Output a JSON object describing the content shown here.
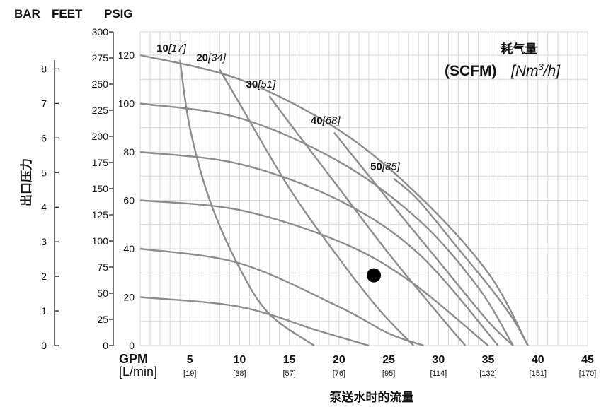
{
  "header": {
    "unit_bar": "BAR",
    "unit_feet": "FEET",
    "unit_psig": "PSIG"
  },
  "y_axis_title": "出口压力",
  "x_axis_unit_gpm": "GPM",
  "x_axis_unit_lmin": "[L/min]",
  "x_axis_title": "泵送水时的流量",
  "air_legend": {
    "title": "耗气量",
    "scfm": "(SCFM)",
    "nm3h": "[Nm3/h]"
  },
  "chart_data": {
    "type": "line",
    "xlabel": "泵送水时的流量",
    "ylabel": "出口压力",
    "x_ticks_gpm": [
      "5",
      "10",
      "15",
      "20",
      "25",
      "30",
      "35",
      "40",
      "45"
    ],
    "x_ticks_lmin": [
      "[19]",
      "[38]",
      "[57]",
      "[76]",
      "[95]",
      "[114]",
      "[132]",
      "[151]",
      "[170]"
    ],
    "y_ticks_psig": [
      "0",
      "20",
      "40",
      "60",
      "80",
      "100",
      "120"
    ],
    "y_ticks_feet": [
      "0",
      "25",
      "50",
      "75",
      "100",
      "125",
      "150",
      "175",
      "200",
      "225",
      "250",
      "275",
      "300"
    ],
    "y_ticks_bar": [
      "0",
      "1",
      "2",
      "3",
      "4",
      "5",
      "6",
      "7",
      "8"
    ],
    "xlim": [
      0,
      45
    ],
    "ylim_psig": [
      0,
      120
    ],
    "grid": true,
    "pressure_curves": [
      {
        "name": "120 psig",
        "x": [
          0,
          10,
          20,
          28,
          35,
          39
        ],
        "y": [
          120,
          110,
          89,
          62,
          30,
          0
        ]
      },
      {
        "name": "100 psig",
        "x": [
          0,
          10,
          20,
          28,
          34,
          37.5
        ],
        "y": [
          100,
          94,
          76,
          52,
          24,
          0
        ]
      },
      {
        "name": "80 psig",
        "x": [
          0,
          10,
          20,
          28,
          36
        ],
        "y": [
          80,
          75,
          60,
          38,
          0
        ]
      },
      {
        "name": "60 psig",
        "x": [
          0,
          10,
          20,
          27,
          35
        ],
        "y": [
          60,
          56,
          43,
          27,
          0
        ]
      },
      {
        "name": "40 psig",
        "x": [
          0,
          10,
          20,
          25,
          28.5
        ],
        "y": [
          40,
          34,
          16,
          5,
          0
        ]
      },
      {
        "name": "20 psig",
        "x": [
          0,
          10,
          18,
          23
        ],
        "y": [
          20,
          16,
          6,
          0
        ]
      }
    ],
    "air_curves": [
      {
        "name": "10",
        "label": "10",
        "label_metric": "[17]",
        "x": [
          4,
          5,
          7,
          10,
          13,
          17.5
        ],
        "y": [
          118,
          90,
          60,
          32,
          13,
          0
        ]
      },
      {
        "name": "20",
        "label": "20",
        "label_metric": "[34]",
        "x": [
          8,
          10,
          15,
          20,
          24,
          27.5
        ],
        "y": [
          114,
          100,
          65,
          36,
          15,
          0
        ]
      },
      {
        "name": "30",
        "label": "30",
        "label_metric": "[51]",
        "x": [
          13,
          15,
          20,
          25,
          30,
          32.7
        ],
        "y": [
          103,
          92,
          65,
          38,
          13,
          0
        ]
      },
      {
        "name": "40",
        "label": "40",
        "label_metric": "[68]",
        "x": [
          19.5,
          25,
          30,
          35,
          37.5
        ],
        "y": [
          88,
          60,
          35,
          10,
          0
        ]
      },
      {
        "name": "50",
        "label": "50",
        "label_metric": "[85]",
        "x": [
          25.5,
          28,
          32,
          35,
          37.5,
          39
        ],
        "y": [
          69,
          60,
          40,
          25,
          11,
          0
        ]
      }
    ],
    "marker": {
      "x": 23.5,
      "y": 29
    }
  }
}
